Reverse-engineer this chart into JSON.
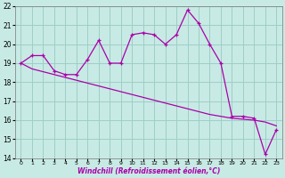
{
  "xlabel": "Windchill (Refroidissement éolien,°C)",
  "bg_color": "#c8eae4",
  "grid_color": "#9ecec8",
  "line_color": "#aa00aa",
  "x_line1": [
    0,
    1,
    2,
    3,
    4,
    5,
    6,
    7,
    8,
    9,
    10,
    11,
    12,
    13,
    14,
    15,
    16,
    17,
    18,
    19,
    20,
    21,
    22,
    23
  ],
  "y_line1": [
    19.0,
    19.4,
    19.4,
    18.6,
    18.4,
    18.4,
    19.2,
    20.2,
    19.0,
    19.0,
    20.5,
    20.6,
    20.5,
    20.0,
    20.5,
    21.8,
    21.1,
    20.0,
    19.0,
    16.2,
    16.2,
    16.1,
    14.2,
    15.5
  ],
  "x_line2": [
    0,
    1,
    2,
    3,
    4,
    5,
    6,
    7,
    8,
    9,
    10,
    11,
    12,
    13,
    14,
    15,
    16,
    17,
    18,
    19,
    20,
    21,
    22,
    23
  ],
  "y_line2": [
    19.0,
    18.7,
    18.55,
    18.4,
    18.25,
    18.1,
    17.95,
    17.8,
    17.65,
    17.5,
    17.35,
    17.2,
    17.05,
    16.9,
    16.75,
    16.6,
    16.45,
    16.3,
    16.2,
    16.1,
    16.05,
    16.0,
    15.9,
    15.7
  ],
  "ylim": [
    14,
    22
  ],
  "xlim": [
    0,
    23
  ],
  "yticks": [
    14,
    15,
    16,
    17,
    18,
    19,
    20,
    21,
    22
  ],
  "xtick_labels": [
    "0",
    "1",
    "2",
    "3",
    "4",
    "5",
    "6",
    "7",
    "8",
    "9",
    "10",
    "11",
    "12",
    "13",
    "14",
    "15",
    "16",
    "17",
    "18",
    "19",
    "20",
    "21",
    "22",
    "23"
  ]
}
